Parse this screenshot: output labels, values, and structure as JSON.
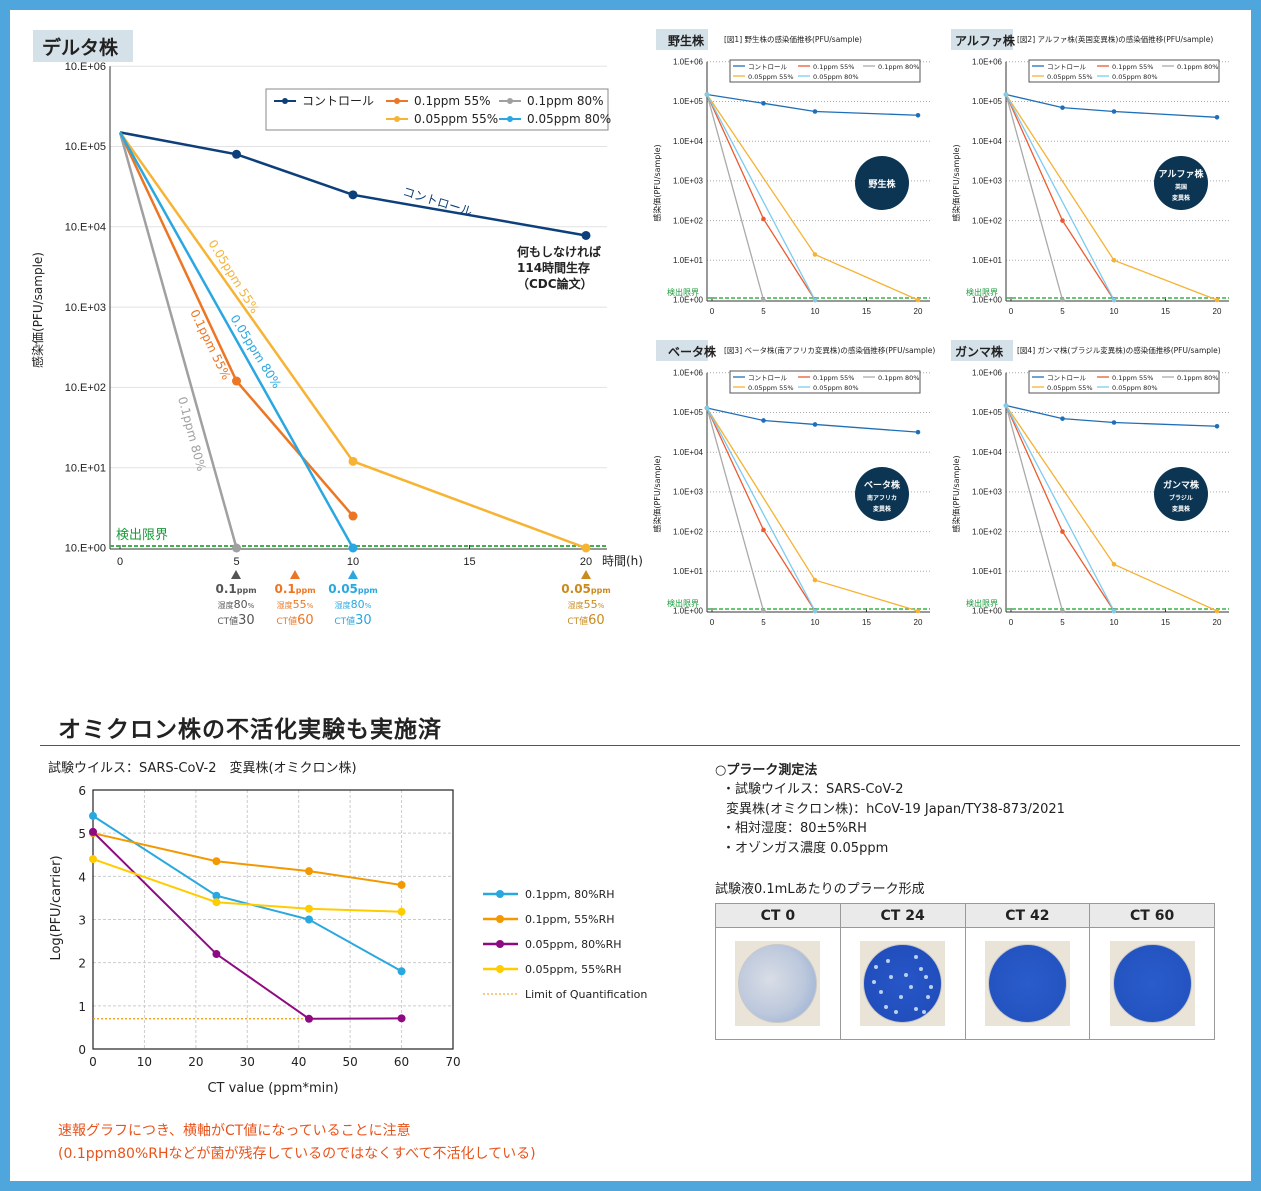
{
  "delta": {
    "badge": "デルタ株",
    "y_label": "感染価(PFU/sample)",
    "x_label": "時間(h)",
    "ytick_labels": [
      "10.E+00",
      "10.E+01",
      "10.E+02",
      "10.E+03",
      "10.E+04",
      "10.E+05",
      "10.E+06"
    ],
    "xticks": [
      "0",
      "5",
      "10",
      "15",
      "20"
    ],
    "detection_limit_label": "検出限界",
    "legend": [
      "コントロール",
      "0.1ppm 55%",
      "0.1ppm 80%",
      "0.05ppm 55%",
      "0.05ppm 80%"
    ],
    "inline_labels": [
      "コントロール",
      "0.05ppm 55%",
      "0.05ppm 80%",
      "0.1ppm 55%",
      "0.1ppm 80%"
    ],
    "annotation": [
      "何もしなければ",
      "114時間生存",
      "（CDC論文）"
    ],
    "markers": [
      {
        "ppm": "0.1",
        "ppm_unit": "ppm",
        "hum_label": "湿度",
        "hum": "80",
        "pct": "%",
        "ct_label": "CT値",
        "ct": "30",
        "color": "#555555"
      },
      {
        "ppm": "0.1",
        "ppm_unit": "ppm",
        "hum_label": "湿度",
        "hum": "55",
        "pct": "%",
        "ct_label": "CT値",
        "ct": "60",
        "color": "#ec7623"
      },
      {
        "ppm": "0.05",
        "ppm_unit": "ppm",
        "hum_label": "湿度",
        "hum": "80",
        "pct": "%",
        "ct_label": "CT値",
        "ct": "30",
        "color": "#2aa7e0"
      },
      {
        "ppm": "0.05",
        "ppm_unit": "ppm",
        "hum_label": "湿度",
        "hum": "55",
        "pct": "%",
        "ct_label": "CT値",
        "ct": "60",
        "color": "#c98a1e"
      }
    ]
  },
  "small_common": {
    "y_label": "感染価(PFU/sample)",
    "ytick_labels": [
      "1.0E+00",
      "1.0E+01",
      "1.0E+02",
      "1.0E+03",
      "1.0E+04",
      "1.0E+05",
      "1.0E+06"
    ],
    "xticks": [
      "0",
      "5",
      "10",
      "15",
      "20"
    ],
    "detection_limit_label": "検出限界",
    "legend": [
      "コントロール",
      "0.1ppm 55%",
      "0.1ppm 80%",
      "0.05ppm 55%",
      "0.05ppm 80%"
    ]
  },
  "panels": [
    {
      "badge": "野生株",
      "caption": "[図1] 野生株の感染価推移(PFU/sample)",
      "circle": [
        "野生株"
      ]
    },
    {
      "badge": "アルファ株",
      "caption": "[図2] アルファ株(英国変異株)の感染価推移(PFU/sample)",
      "circle": [
        "アルファ株",
        "英国",
        "変異株"
      ]
    },
    {
      "badge": "ベータ株",
      "caption": "[図3] ベータ株(南アフリカ変異株)の感染価推移(PFU/sample)",
      "circle": [
        "ベータ株",
        "南アフリカ",
        "変異株"
      ]
    },
    {
      "badge": "ガンマ株",
      "caption": "[図4] ガンマ株(ブラジル変異株)の感染価推移(PFU/sample)",
      "circle": [
        "ガンマ株",
        "ブラジル",
        "変異株"
      ]
    }
  ],
  "colors": {
    "delta_series": [
      "#0d3f7a",
      "#ec7623",
      "#a0a0a0",
      "#f7b334",
      "#2aa7e0"
    ],
    "small_series": [
      "#1f6fb8",
      "#ec5a2f",
      "#aaaaaa",
      "#f6b233",
      "#7ccbf0"
    ],
    "detection_limit": "#3cb44b",
    "circle_badge": "#0b3552",
    "note_text": "#e8541c"
  },
  "chart_data": [
    {
      "type": "line",
      "title": "デルタ株",
      "xlabel": "時間(h)",
      "ylabel": "感染価(PFU/sample)",
      "y_scale": "log",
      "ylim": [
        1,
        1000000
      ],
      "xlim": [
        0,
        20
      ],
      "grid": "horizontal",
      "legend_position": "top-right",
      "series": [
        {
          "name": "コントロール",
          "points": [
            [
              0,
              150000
            ],
            [
              5,
              80000
            ],
            [
              10,
              25000
            ],
            [
              20,
              7800
            ]
          ]
        },
        {
          "name": "0.1ppm 55%",
          "points": [
            [
              0,
              150000
            ],
            [
              5,
              120
            ],
            [
              10,
              2.5
            ]
          ]
        },
        {
          "name": "0.1ppm 80%",
          "points": [
            [
              0,
              150000
            ],
            [
              5,
              1
            ]
          ]
        },
        {
          "name": "0.05ppm 55%",
          "points": [
            [
              0,
              150000
            ],
            [
              10,
              12
            ],
            [
              20,
              1
            ]
          ]
        },
        {
          "name": "0.05ppm 80%",
          "points": [
            [
              0,
              150000
            ],
            [
              10,
              1
            ]
          ]
        }
      ]
    },
    {
      "type": "line",
      "title": "[図1] 野生株の感染価推移(PFU/sample)",
      "ylabel": "感染価(PFU/sample)",
      "y_scale": "log",
      "ylim": [
        1,
        1000000
      ],
      "xlim": [
        0,
        20
      ],
      "grid": "horizontal",
      "legend_position": "top",
      "series": [
        {
          "name": "コントロール",
          "points": [
            [
              0,
              150000
            ],
            [
              5,
              90000
            ],
            [
              10,
              56000
            ],
            [
              20,
              45000
            ]
          ]
        },
        {
          "name": "0.1ppm 55%",
          "points": [
            [
              0,
              150000
            ],
            [
              5,
              110
            ],
            [
              10,
              1
            ]
          ]
        },
        {
          "name": "0.1ppm 80%",
          "points": [
            [
              0,
              150000
            ],
            [
              5,
              1
            ]
          ]
        },
        {
          "name": "0.05ppm 55%",
          "points": [
            [
              0,
              150000
            ],
            [
              10,
              14
            ],
            [
              20,
              1
            ]
          ]
        },
        {
          "name": "0.05ppm 80%",
          "points": [
            [
              0,
              150000
            ],
            [
              10,
              1
            ]
          ]
        }
      ]
    },
    {
      "type": "line",
      "title": "[図2] アルファ株(英国変異株)の感染価推移(PFU/sample)",
      "ylabel": "感染価(PFU/sample)",
      "y_scale": "log",
      "ylim": [
        1,
        1000000
      ],
      "xlim": [
        0,
        20
      ],
      "grid": "horizontal",
      "legend_position": "top",
      "series": [
        {
          "name": "コントロール",
          "points": [
            [
              0,
              150000
            ],
            [
              5,
              70000
            ],
            [
              10,
              56000
            ],
            [
              20,
              40000
            ]
          ]
        },
        {
          "name": "0.1ppm 55%",
          "points": [
            [
              0,
              150000
            ],
            [
              5,
              100
            ],
            [
              10,
              1
            ]
          ]
        },
        {
          "name": "0.1ppm 80%",
          "points": [
            [
              0,
              150000
            ],
            [
              5,
              1
            ]
          ]
        },
        {
          "name": "0.05ppm 55%",
          "points": [
            [
              0,
              150000
            ],
            [
              10,
              10
            ],
            [
              20,
              1
            ]
          ]
        },
        {
          "name": "0.05ppm 80%",
          "points": [
            [
              0,
              150000
            ],
            [
              10,
              1
            ]
          ]
        }
      ]
    },
    {
      "type": "line",
      "title": "[図3] ベータ株(南アフリカ変異株)の感染価推移(PFU/sample)",
      "ylabel": "感染価(PFU/sample)",
      "y_scale": "log",
      "ylim": [
        1,
        1000000
      ],
      "xlim": [
        0,
        20
      ],
      "grid": "horizontal",
      "legend_position": "top",
      "series": [
        {
          "name": "コントロール",
          "points": [
            [
              0,
              130000
            ],
            [
              5,
              63000
            ],
            [
              10,
              50000
            ],
            [
              20,
              32000
            ]
          ]
        },
        {
          "name": "0.1ppm 55%",
          "points": [
            [
              0,
              130000
            ],
            [
              5,
              110
            ],
            [
              10,
              1
            ]
          ]
        },
        {
          "name": "0.1ppm 80%",
          "points": [
            [
              0,
              130000
            ],
            [
              5,
              1
            ]
          ]
        },
        {
          "name": "0.05ppm 55%",
          "points": [
            [
              0,
              130000
            ],
            [
              10,
              6
            ],
            [
              20,
              1
            ]
          ]
        },
        {
          "name": "0.05ppm 80%",
          "points": [
            [
              0,
              130000
            ],
            [
              10,
              1
            ]
          ]
        }
      ]
    },
    {
      "type": "line",
      "title": "[図4] ガンマ株(ブラジル変異株)の感染価推移(PFU/sample)",
      "ylabel": "感染価(PFU/sample)",
      "y_scale": "log",
      "ylim": [
        1,
        1000000
      ],
      "xlim": [
        0,
        20
      ],
      "grid": "horizontal",
      "legend_position": "top",
      "series": [
        {
          "name": "コントロール",
          "points": [
            [
              0,
              150000
            ],
            [
              5,
              70000
            ],
            [
              10,
              56000
            ],
            [
              20,
              45000
            ]
          ]
        },
        {
          "name": "0.1ppm 55%",
          "points": [
            [
              0,
              150000
            ],
            [
              5,
              100
            ],
            [
              10,
              1
            ]
          ]
        },
        {
          "name": "0.1ppm 80%",
          "points": [
            [
              0,
              150000
            ],
            [
              5,
              1
            ]
          ]
        },
        {
          "name": "0.05ppm 55%",
          "points": [
            [
              0,
              150000
            ],
            [
              10,
              15
            ],
            [
              20,
              1
            ]
          ]
        },
        {
          "name": "0.05ppm 80%",
          "points": [
            [
              0,
              150000
            ],
            [
              10,
              1
            ]
          ]
        }
      ]
    },
    {
      "type": "line",
      "title": "試験ウイルス：SARS-CoV-2　変異株(オミクロン株)",
      "xlabel": "CT value (ppm*min)",
      "ylabel": "Log(PFU/carrier)",
      "xlim": [
        0,
        70
      ],
      "ylim": [
        0,
        6
      ],
      "grid": "both-dashed",
      "legend_position": "right",
      "xticks": [
        "0",
        "10",
        "20",
        "30",
        "40",
        "50",
        "60",
        "70"
      ],
      "yticks": [
        "0",
        "1",
        "2",
        "3",
        "4",
        "5",
        "6"
      ],
      "series": [
        {
          "name": "0.1ppm, 80%RH",
          "color": "#29a8df",
          "points": [
            [
              0,
              5.4
            ],
            [
              24,
              3.55
            ],
            [
              42,
              3.0
            ],
            [
              60,
              1.8
            ]
          ]
        },
        {
          "name": "0.1ppm, 55%RH",
          "color": "#f39800",
          "points": [
            [
              0,
              5.0
            ],
            [
              24,
              4.35
            ],
            [
              42,
              4.12
            ],
            [
              60,
              3.8
            ]
          ]
        },
        {
          "name": "0.05ppm, 80%RH",
          "color": "#8e0a82",
          "points": [
            [
              0,
              5.03
            ],
            [
              24,
              2.2
            ],
            [
              42,
              0.7
            ],
            [
              60,
              0.71
            ]
          ]
        },
        {
          "name": "0.05ppm, 55%RH",
          "color": "#ffcc00",
          "points": [
            [
              0,
              4.4
            ],
            [
              24,
              3.4
            ],
            [
              42,
              3.25
            ],
            [
              60,
              3.18
            ]
          ]
        }
      ],
      "reference_line": {
        "name": "Limit of Quantification",
        "y": 0.7,
        "x_range": [
          0,
          42
        ],
        "color": "#f39800"
      }
    }
  ],
  "omicron": {
    "heading": "オミクロン株の不活化実験も実施済",
    "notes": [
      "速報グラフにつき、横軸がCT値になっていることに注意",
      "(0.1ppm80%RHなどが菌が残存しているのではなくすべて不活化している)"
    ]
  },
  "method": {
    "title": "○プラーク測定法",
    "lines": [
      "・試験ウイルス：SARS-CoV-2",
      "変異株(オミクロン株)：hCoV-19 Japan/TY38-873/2021",
      "・相対湿度：80±5%RH",
      "・オゾンガス濃度 0.05ppm"
    ],
    "table_caption": "試験液0.1mLあたりのプラーク形成",
    "table_headers": [
      "CT 0",
      "CT 24",
      "CT 42",
      "CT 60"
    ]
  }
}
